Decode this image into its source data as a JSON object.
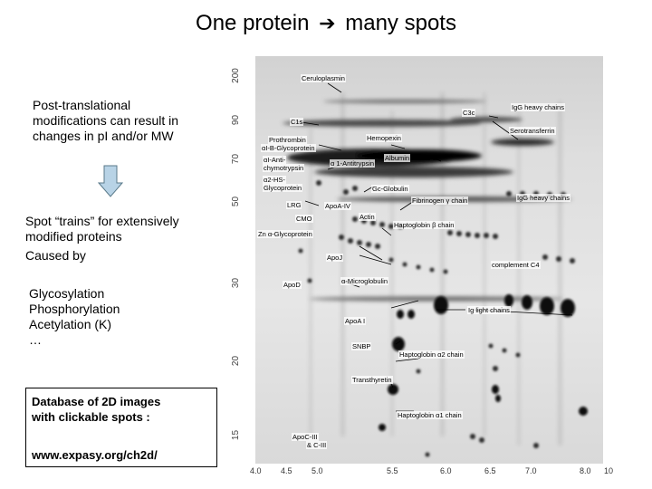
{
  "title": {
    "text_left": "One protein",
    "text_right": "many spots"
  },
  "left_text": {
    "ptm_lines": [
      "Post-translational",
      "modifications can result in",
      "changes in pI and/or MW"
    ],
    "trains_lines": [
      "Spot “trains” for extensively",
      "modified proteins",
      "Caused by"
    ],
    "causes": [
      "Glycosylation",
      "Phosphorylation",
      "Acetylation (K)",
      "…"
    ]
  },
  "database_box": {
    "lines": [
      "Database of 2D images",
      "with clickable spots :"
    ],
    "url": "www.expasy.org/ch2d/"
  },
  "gel": {
    "y_axis_labels": [
      "200",
      "90",
      "70",
      "50",
      "30",
      "20",
      "15"
    ],
    "x_axis_labels": [
      "4.0",
      "4.5",
      "5.0",
      "5.5",
      "6.0",
      "6.5",
      "7.0",
      "8.0",
      "10"
    ],
    "protein_labels": [
      "Ceruloplasmin",
      "C3c",
      "IgG heavy chains",
      "C1s",
      "Prothrombin",
      "αI-B-Glycoprotein",
      "Hemopexin",
      "Serotransferrin",
      "αI-Anti-",
      "chymotrypsin",
      "α 1-Antitrypsin",
      "Albumin",
      "α2-HS-",
      "Glycoprotein",
      "Gc-Globulin",
      "Fibrinogen γ chain",
      "IgG heavy chains",
      "LRG",
      "ApoA-IV",
      "CMO",
      "Actin",
      "Haptoglobin β chain",
      "Zn α-Glycoprotein",
      "ApoJ",
      "complement C4",
      "ApoD",
      "α-Microglobulin",
      "Ig light chains",
      "ApoA I",
      "SNBP",
      "Haptoglobin α2 chain",
      "Transthyretin",
      "Haptoglobin α1 chain",
      "ApoC-III",
      "& C-III"
    ]
  },
  "colors": {
    "arrow_fill": "#b8d3e6",
    "arrow_stroke": "#5a7a8a"
  }
}
